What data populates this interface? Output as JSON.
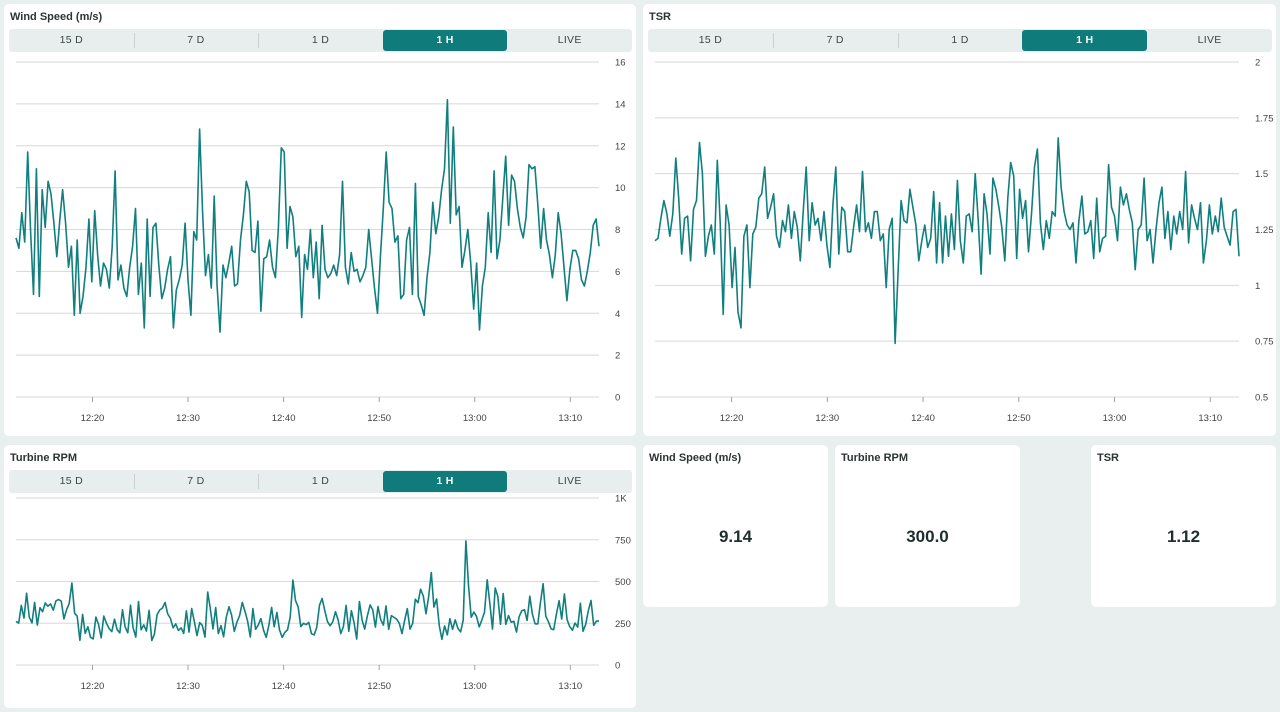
{
  "colors": {
    "line": "#117f7f",
    "tab_active": "#0f7b7b",
    "grid": "#d5dada",
    "background": "#e9eeee"
  },
  "range_tabs": [
    "15 D",
    "7 D",
    "1 D",
    "1 H",
    "LIVE"
  ],
  "active_tab": "1 H",
  "widgets": {
    "wind_chart": {
      "title": "Wind Speed (m/s)"
    },
    "tsr_chart": {
      "title": "TSR"
    },
    "rpm_chart": {
      "title": "Turbine RPM"
    }
  },
  "kpis": [
    {
      "title": "Wind Speed (m/s)",
      "value": "9.14"
    },
    {
      "title": "Turbine RPM",
      "value": "300.0"
    },
    {
      "title": "TSR",
      "value": "1.12"
    }
  ],
  "chart_data": [
    {
      "type": "line",
      "title": "Wind Speed (m/s)",
      "xlabel": "",
      "ylabel": "",
      "x_ticks": [
        "12:20",
        "12:30",
        "12:40",
        "12:50",
        "13:00",
        "13:10"
      ],
      "x_range": [
        "12:12",
        "13:13"
      ],
      "y_ticks": [
        "0",
        "2",
        "4",
        "6",
        "8",
        "10",
        "12",
        "14",
        "16"
      ],
      "ylim": [
        0,
        16
      ],
      "grid": true,
      "series": [
        {
          "values": [
            7.6,
            7.1,
            8.8,
            7.4,
            11.7,
            7.9,
            4.9,
            10.9,
            4.8,
            9.9,
            8.1,
            10.3,
            9.7,
            8.3,
            6.7,
            8.4,
            9.9,
            8.3,
            6.2,
            7.2,
            3.9,
            7.5,
            4,
            4.8,
            6.2,
            8.5,
            5.5,
            8.9,
            6.8,
            5.3,
            6.4,
            6.1,
            5.2,
            7.2,
            10.8,
            5.6,
            6.3,
            5.2,
            4.8,
            6.2,
            7.2,
            9,
            4.9,
            6.4,
            3.3,
            8.5,
            4.8,
            8.1,
            8.3,
            6.3,
            4.7,
            5.2,
            6.1,
            6.7,
            3.3,
            5.1,
            5.6,
            6.3,
            8.3,
            5.6,
            3.9,
            7.9,
            7.5,
            12.8,
            8.8,
            5.8,
            6.8,
            5.2,
            9.6,
            5.3,
            3.1,
            6.3,
            5.7,
            6.4,
            7.2,
            5.3,
            5.4,
            7.5,
            8.7,
            10.3,
            9.8,
            7,
            6.9,
            8.4,
            4.1,
            6.6,
            6.7,
            7.5,
            6.2,
            5.7,
            8.1,
            11.9,
            11.7,
            7.1,
            9.1,
            8.6,
            6.7,
            7.2,
            3.8,
            6.8,
            6.1,
            8,
            5.7,
            7.4,
            4.7,
            8.2,
            6.1,
            5.7,
            5.9,
            6.3,
            5.8,
            6.8,
            10.3,
            6.2,
            5.4,
            6.9,
            6,
            6.1,
            5.5,
            5.8,
            6.2,
            8,
            6.6,
            5.2,
            4,
            6.7,
            9,
            11.7,
            9.3,
            9,
            7.4,
            7.7,
            4.7,
            4.9,
            7.5,
            8.1,
            4.9,
            10.2,
            4.8,
            4.4,
            3.9,
            5.7,
            6.9,
            9.3,
            7.8,
            8.6,
            9.9,
            10.9,
            14.2,
            8.3,
            12.9,
            8.7,
            9.1,
            6.2,
            7,
            8,
            6.4,
            4.2,
            6.4,
            3.2,
            5.3,
            6.2,
            8.8,
            6.9,
            10.8,
            6.6,
            7.5,
            9.5,
            11.5,
            8.2,
            10.6,
            10.3,
            9,
            8.1,
            7.6,
            8.6,
            11.1,
            10.9,
            11,
            9.2,
            7.1,
            9,
            7.5,
            6.8,
            5.7,
            6.8,
            8.8,
            7.8,
            6.2,
            4.6,
            6.1,
            7,
            7,
            6.6,
            5.6,
            5.3,
            6,
            6.9,
            8.2,
            8.5,
            7.2
          ]
        }
      ]
    },
    {
      "type": "line",
      "title": "TSR",
      "xlabel": "",
      "ylabel": "",
      "x_ticks": [
        "12:20",
        "12:30",
        "12:40",
        "12:50",
        "13:00",
        "13:10"
      ],
      "x_range": [
        "12:12",
        "13:13"
      ],
      "y_ticks": [
        "0.5",
        "0.75",
        "1",
        "1.25",
        "1.5",
        "1.75",
        "2"
      ],
      "ylim": [
        0.5,
        2
      ],
      "grid": true,
      "series": [
        {
          "values": [
            1.2,
            1.21,
            1.3,
            1.38,
            1.32,
            1.22,
            1.32,
            1.57,
            1.39,
            1.14,
            1.3,
            1.31,
            1.11,
            1.34,
            1.38,
            1.64,
            1.5,
            1.13,
            1.22,
            1.27,
            1.14,
            1.56,
            1.28,
            0.87,
            1.36,
            1.27,
            0.99,
            1.17,
            0.88,
            0.81,
            1.22,
            1.27,
            0.99,
            1.23,
            1.26,
            1.39,
            1.41,
            1.53,
            1.3,
            1.35,
            1.41,
            1.22,
            1.17,
            1.29,
            1.24,
            1.36,
            1.21,
            1.33,
            1.26,
            1.11,
            1.33,
            1.53,
            1.2,
            1.37,
            1.27,
            1.3,
            1.2,
            1.33,
            1.18,
            1.08,
            1.36,
            1.53,
            1.14,
            1.35,
            1.33,
            1.15,
            1.15,
            1.26,
            1.36,
            1.24,
            1.51,
            1.24,
            1.28,
            1.21,
            1.33,
            1.33,
            1.2,
            1.23,
            0.99,
            1.25,
            1.3,
            0.74,
            1.06,
            1.38,
            1.29,
            1.28,
            1.43,
            1.35,
            1.27,
            1.11,
            1.2,
            1.27,
            1.17,
            1.21,
            1.42,
            1.1,
            1.37,
            1.1,
            1.31,
            1.13,
            1.32,
            1.16,
            1.47,
            1.2,
            1.1,
            1.31,
            1.32,
            1.24,
            1.5,
            1.3,
            1.05,
            1.41,
            1.32,
            1.14,
            1.48,
            1.43,
            1.35,
            1.26,
            1.11,
            1.39,
            1.55,
            1.49,
            1.12,
            1.43,
            1.3,
            1.38,
            1.15,
            1.32,
            1.53,
            1.61,
            1.28,
            1.16,
            1.29,
            1.21,
            1.33,
            1.31,
            1.66,
            1.44,
            1.33,
            1.27,
            1.25,
            1.28,
            1.1,
            1.29,
            1.4,
            1.23,
            1.24,
            1.29,
            1.12,
            1.39,
            1.15,
            1.21,
            1.22,
            1.54,
            1.35,
            1.31,
            1.2,
            1.44,
            1.36,
            1.41,
            1.34,
            1.28,
            1.07,
            1.25,
            1.27,
            1.48,
            1.2,
            1.25,
            1.1,
            1.25,
            1.37,
            1.44,
            1.21,
            1.33,
            1.16,
            1.31,
            1.23,
            1.33,
            1.25,
            1.51,
            1.19,
            1.36,
            1.3,
            1.25,
            1.37,
            1.1,
            1.2,
            1.36,
            1.23,
            1.31,
            1.24,
            1.39,
            1.26,
            1.22,
            1.18,
            1.33,
            1.34,
            1.13
          ]
        }
      ]
    },
    {
      "type": "line",
      "title": "Turbine RPM",
      "xlabel": "",
      "ylabel": "",
      "x_ticks": [
        "12:20",
        "12:30",
        "12:40",
        "12:50",
        "13:00",
        "13:10"
      ],
      "x_range": [
        "12:12",
        "13:13"
      ],
      "y_ticks": [
        "0",
        "250",
        "500",
        "750",
        "1K"
      ],
      "ylim": [
        0,
        1000
      ],
      "grid": true,
      "series": [
        {
          "values": [
            261,
            251,
            357,
            281,
            430,
            286,
            252,
            375,
            239,
            343,
            319,
            371,
            352,
            366,
            328,
            384,
            392,
            382,
            276,
            331,
            369,
            491,
            310,
            292,
            148,
            303,
            190,
            229,
            166,
            156,
            287,
            243,
            163,
            293,
            249,
            218,
            200,
            274,
            211,
            192,
            331,
            229,
            193,
            358,
            222,
            167,
            380,
            211,
            240,
            203,
            327,
            146,
            185,
            302,
            330,
            341,
            375,
            306,
            279,
            223,
            246,
            207,
            223,
            189,
            324,
            197,
            338,
            258,
            176,
            254,
            237,
            167,
            437,
            338,
            216,
            344,
            188,
            236,
            169,
            286,
            349,
            299,
            201,
            258,
            295,
            375,
            323,
            263,
            168,
            338,
            214,
            240,
            278,
            208,
            165,
            239,
            345,
            229,
            315,
            210,
            165,
            196,
            210,
            287,
            509,
            387,
            347,
            230,
            250,
            242,
            255,
            187,
            180,
            227,
            358,
            398,
            325,
            259,
            235,
            259,
            319,
            270,
            188,
            230,
            357,
            202,
            325,
            252,
            155,
            380,
            269,
            215,
            295,
            360,
            331,
            227,
            350,
            271,
            239,
            354,
            214,
            296,
            285,
            274,
            250,
            188,
            268,
            338,
            215,
            250,
            394,
            373,
            454,
            413,
            307,
            407,
            554,
            347,
            396,
            235,
            154,
            234,
            180,
            277,
            214,
            270,
            220,
            198,
            268,
            743,
            468,
            286,
            317,
            291,
            228,
            270,
            317,
            510,
            366,
            215,
            461,
            412,
            244,
            428,
            243,
            296,
            256,
            262,
            197,
            289,
            325,
            331,
            267,
            412,
            304,
            247,
            246,
            371,
            487,
            291,
            259,
            216,
            211,
            305,
            385,
            275,
            426,
            271,
            230,
            208,
            251,
            227,
            370,
            202,
            244,
            327,
            387,
            238,
            262,
            264
          ]
        }
      ]
    }
  ]
}
